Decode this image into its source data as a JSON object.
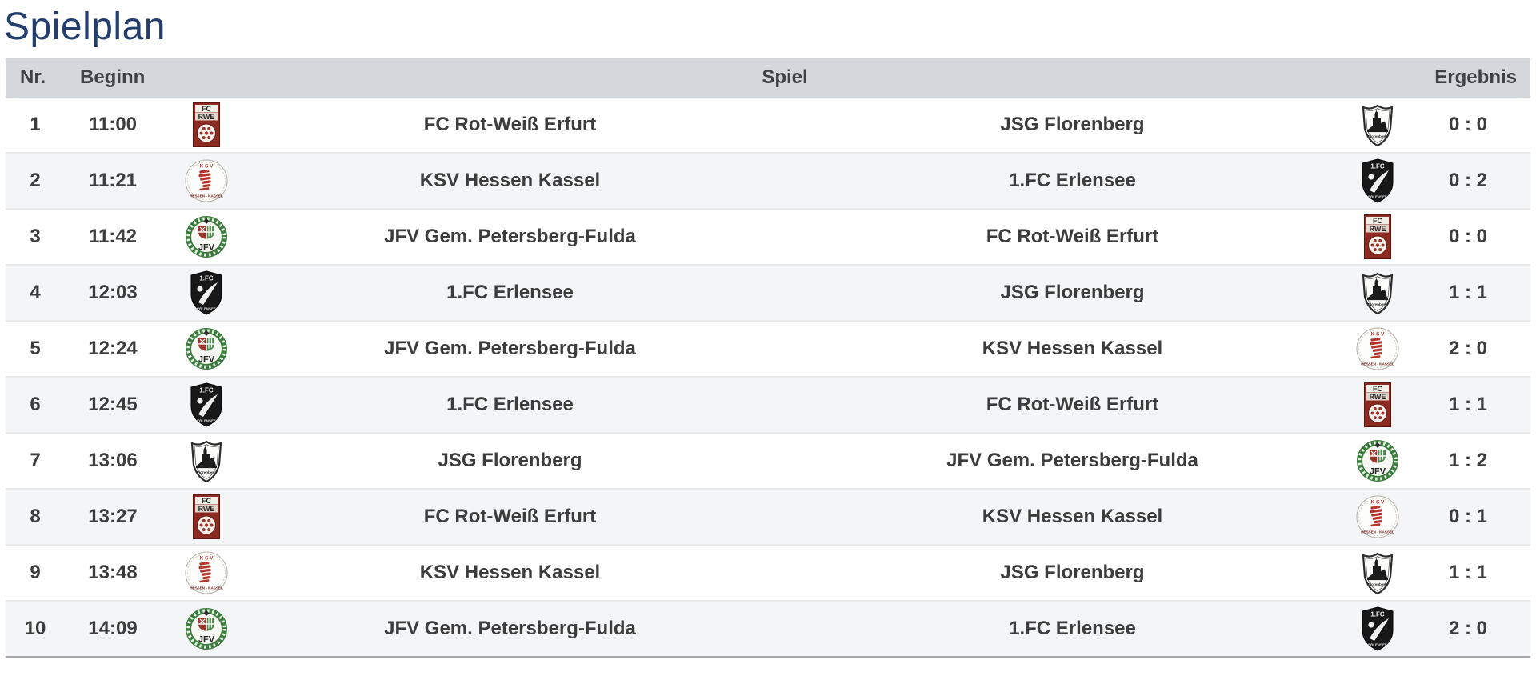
{
  "page": {
    "title": "Spielplan"
  },
  "colors": {
    "title_text": "#233d6d",
    "header_bg": "#d4d7db",
    "header_text": "#3e4247",
    "row_bg": "#ffffff",
    "row_alt_bg": "#f4f5f6",
    "row_text": "#3c3c3c",
    "row_separator": "#e8e9eb",
    "table_bottom_border": "#a5a7aa"
  },
  "table": {
    "headers": {
      "nr": "Nr.",
      "beginn": "Beginn",
      "spiel": "Spiel",
      "ergebnis": "Ergebnis"
    },
    "rows": [
      {
        "nr": "1",
        "time": "11:00",
        "home": "FC Rot-Weiß Erfurt",
        "home_logo": "fc-rot-weiss-erfurt",
        "away": "JSG Florenberg",
        "away_logo": "jsg-florenberg",
        "result": "0 : 0"
      },
      {
        "nr": "2",
        "time": "11:21",
        "home": "KSV Hessen Kassel",
        "home_logo": "ksv-hessen-kassel",
        "away": "1.FC Erlensee",
        "away_logo": "1fc-erlensee",
        "result": "0 : 2"
      },
      {
        "nr": "3",
        "time": "11:42",
        "home": "JFV Gem. Petersberg-Fulda",
        "home_logo": "jfv-gem-petersberg-fulda",
        "away": "FC Rot-Weiß Erfurt",
        "away_logo": "fc-rot-weiss-erfurt",
        "result": "0 : 0"
      },
      {
        "nr": "4",
        "time": "12:03",
        "home": "1.FC Erlensee",
        "home_logo": "1fc-erlensee",
        "away": "JSG Florenberg",
        "away_logo": "jsg-florenberg",
        "result": "1 : 1"
      },
      {
        "nr": "5",
        "time": "12:24",
        "home": "JFV Gem. Petersberg-Fulda",
        "home_logo": "jfv-gem-petersberg-fulda",
        "away": "KSV Hessen Kassel",
        "away_logo": "ksv-hessen-kassel",
        "result": "2 : 0"
      },
      {
        "nr": "6",
        "time": "12:45",
        "home": "1.FC Erlensee",
        "home_logo": "1fc-erlensee",
        "away": "FC Rot-Weiß Erfurt",
        "away_logo": "fc-rot-weiss-erfurt",
        "result": "1 : 1"
      },
      {
        "nr": "7",
        "time": "13:06",
        "home": "JSG Florenberg",
        "home_logo": "jsg-florenberg",
        "away": "JFV Gem. Petersberg-Fulda",
        "away_logo": "jfv-gem-petersberg-fulda",
        "result": "1 : 2"
      },
      {
        "nr": "8",
        "time": "13:27",
        "home": "FC Rot-Weiß Erfurt",
        "home_logo": "fc-rot-weiss-erfurt",
        "away": "KSV Hessen Kassel",
        "away_logo": "ksv-hessen-kassel",
        "result": "0 : 1"
      },
      {
        "nr": "9",
        "time": "13:48",
        "home": "KSV Hessen Kassel",
        "home_logo": "ksv-hessen-kassel",
        "away": "JSG Florenberg",
        "away_logo": "jsg-florenberg",
        "result": "1 : 1"
      },
      {
        "nr": "10",
        "time": "14:09",
        "home": "JFV Gem. Petersberg-Fulda",
        "home_logo": "jfv-gem-petersberg-fulda",
        "away": "1.FC Erlensee",
        "away_logo": "1fc-erlensee",
        "result": "2 : 0"
      }
    ]
  }
}
